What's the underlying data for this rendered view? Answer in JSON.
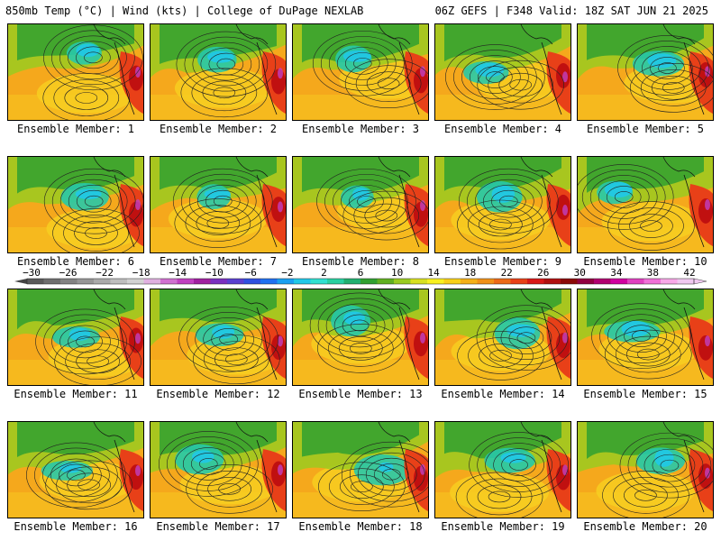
{
  "header": {
    "left": "850mb Temp (°C) | Wind (kts) | College of DuPage NEXLAB",
    "right": "06Z GEFS | F348 Valid: 18Z SAT JUN 21 2025"
  },
  "members": [
    {
      "label": "Ensemble Member: 1"
    },
    {
      "label": "Ensemble Member: 2"
    },
    {
      "label": "Ensemble Member: 3"
    },
    {
      "label": "Ensemble Member: 4"
    },
    {
      "label": "Ensemble Member: 5"
    },
    {
      "label": "Ensemble Member: 6"
    },
    {
      "label": "Ensemble Member: 7"
    },
    {
      "label": "Ensemble Member: 8"
    },
    {
      "label": "Ensemble Member: 9"
    },
    {
      "label": "Ensemble Member: 10"
    },
    {
      "label": "Ensemble Member: 11"
    },
    {
      "label": "Ensemble Member: 12"
    },
    {
      "label": "Ensemble Member: 13"
    },
    {
      "label": "Ensemble Member: 14"
    },
    {
      "label": "Ensemble Member: 15"
    },
    {
      "label": "Ensemble Member: 16"
    },
    {
      "label": "Ensemble Member: 17"
    },
    {
      "label": "Ensemble Member: 18"
    },
    {
      "label": "Ensemble Member: 19"
    },
    {
      "label": "Ensemble Member: 20"
    }
  ],
  "colorbar": {
    "ticks": [
      "−30",
      "−26",
      "−22",
      "−18",
      "−14",
      "−10",
      "−6",
      "−2",
      "2",
      "6",
      "10",
      "14",
      "18",
      "22",
      "26",
      "30",
      "34",
      "38",
      "42"
    ],
    "colors": [
      "#5a5a5a",
      "#6e6e6e",
      "#828282",
      "#969696",
      "#aaaaaa",
      "#bebebe",
      "#d2d2d2",
      "#e0b0e0",
      "#d070d0",
      "#c040c0",
      "#a020a0",
      "#7a30c0",
      "#5a40d0",
      "#3050e0",
      "#2070f0",
      "#1a9ff0",
      "#20c8e8",
      "#30e0d0",
      "#28d0a0",
      "#20b070",
      "#30a030",
      "#60b020",
      "#9acb20",
      "#d8e020",
      "#f8f020",
      "#f8d018",
      "#f4b018",
      "#f09018",
      "#ec6a18",
      "#e84018",
      "#d81818",
      "#b01010",
      "#8a0808",
      "#900040",
      "#b00070",
      "#d000a0",
      "#e040c0",
      "#f070d8",
      "#f8a8e8",
      "#f0c8f0"
    ]
  },
  "colors": {
    "warm": "#f4a01a",
    "hot": "#e82010",
    "green": "#3aa83a",
    "teal": "#20c8c0"
  }
}
